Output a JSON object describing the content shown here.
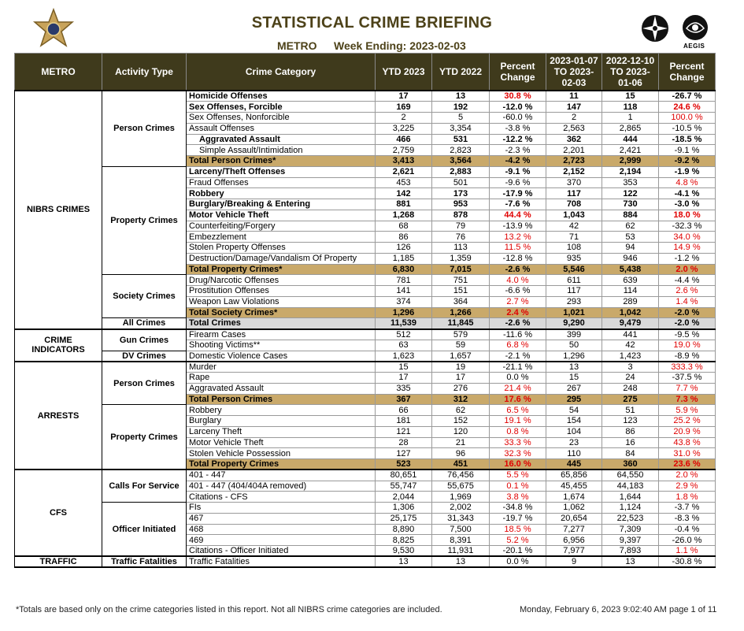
{
  "header": {
    "title": "STATISTICAL CRIME BRIEFING",
    "area": "METRO",
    "week": "Week Ending: 2023-02-03",
    "logo_text": "AEGIS"
  },
  "table": {
    "columns": [
      "METRO",
      "Activity Type",
      "Crime Category",
      "YTD  2023",
      "YTD  2022",
      "Percent Change",
      "2023-01-07 TO 2023-02-03",
      "2022-12-10 TO 2023-01-06",
      "Percent Change"
    ],
    "sections": [
      {
        "name": "NIBRS CRIMES",
        "groups": [
          {
            "name": "Person Crimes",
            "rows": [
              {
                "style": "bold",
                "cells": [
                  "Homicide Offenses",
                  "17",
                  "13",
                  "30.8 %",
                  "11",
                  "15",
                  "-26.7 %"
                ]
              },
              {
                "style": "bold",
                "cells": [
                  "Sex Offenses, Forcible",
                  "169",
                  "192",
                  "-12.0 %",
                  "147",
                  "118",
                  "24.6 %"
                ]
              },
              {
                "cells": [
                  "Sex Offenses, Nonforcible",
                  "2",
                  "5",
                  "-60.0 %",
                  "2",
                  "1",
                  "100.0 %"
                ]
              },
              {
                "cells": [
                  "Assault Offenses",
                  "3,225",
                  "3,354",
                  "-3.8 %",
                  "2,563",
                  "2,865",
                  "-10.5 %"
                ]
              },
              {
                "style": "bold-indent",
                "cells": [
                  "Aggravated Assault",
                  "466",
                  "531",
                  "-12.2 %",
                  "362",
                  "444",
                  "-18.5 %"
                ]
              },
              {
                "style": "indent",
                "cells": [
                  "Simple Assault/Intimidation",
                  "2,759",
                  "2,823",
                  "-2.3 %",
                  "2,201",
                  "2,421",
                  "-9.1 %"
                ]
              },
              {
                "style": "total",
                "cells": [
                  "Total Person Crimes*",
                  "3,413",
                  "3,564",
                  "-4.2 %",
                  "2,723",
                  "2,999",
                  "-9.2 %"
                ]
              }
            ]
          },
          {
            "name": "Property Crimes",
            "rows": [
              {
                "style": "bold",
                "cells": [
                  "Larceny/Theft Offenses",
                  "2,621",
                  "2,883",
                  "-9.1 %",
                  "2,152",
                  "2,194",
                  "-1.9 %"
                ]
              },
              {
                "cells": [
                  "Fraud Offenses",
                  "453",
                  "501",
                  "-9.6 %",
                  "370",
                  "353",
                  "4.8 %"
                ]
              },
              {
                "style": "bold",
                "cells": [
                  "Robbery",
                  "142",
                  "173",
                  "-17.9 %",
                  "117",
                  "122",
                  "-4.1 %"
                ]
              },
              {
                "style": "bold",
                "cells": [
                  "Burglary/Breaking & Entering",
                  "881",
                  "953",
                  "-7.6 %",
                  "708",
                  "730",
                  "-3.0 %"
                ]
              },
              {
                "style": "bold",
                "cells": [
                  "Motor Vehicle Theft",
                  "1,268",
                  "878",
                  "44.4 %",
                  "1,043",
                  "884",
                  "18.0 %"
                ]
              },
              {
                "cells": [
                  "Counterfeiting/Forgery",
                  "68",
                  "79",
                  "-13.9 %",
                  "42",
                  "62",
                  "-32.3 %"
                ]
              },
              {
                "cells": [
                  "Embezzlement",
                  "86",
                  "76",
                  "13.2 %",
                  "71",
                  "53",
                  "34.0 %"
                ]
              },
              {
                "cells": [
                  "Stolen Property Offenses",
                  "126",
                  "113",
                  "11.5 %",
                  "108",
                  "94",
                  "14.9 %"
                ]
              },
              {
                "cells": [
                  "Destruction/Damage/Vandalism Of Property",
                  "1,185",
                  "1,359",
                  "-12.8 %",
                  "935",
                  "946",
                  "-1.2 %"
                ]
              },
              {
                "style": "total",
                "cells": [
                  "Total Property Crimes*",
                  "6,830",
                  "7,015",
                  "-2.6 %",
                  "5,546",
                  "5,438",
                  "2.0 %"
                ]
              }
            ]
          },
          {
            "name": "Society Crimes",
            "rows": [
              {
                "cells": [
                  "Drug/Narcotic Offenses",
                  "781",
                  "751",
                  "4.0 %",
                  "611",
                  "639",
                  "-4.4 %"
                ]
              },
              {
                "cells": [
                  "Prostitution Offenses",
                  "141",
                  "151",
                  "-6.6 %",
                  "117",
                  "114",
                  "2.6 %"
                ]
              },
              {
                "cells": [
                  "Weapon Law Violations",
                  "374",
                  "364",
                  "2.7 %",
                  "293",
                  "289",
                  "1.4 %"
                ]
              },
              {
                "style": "total",
                "cells": [
                  "Total Society Crimes*",
                  "1,296",
                  "1,266",
                  "2.4 %",
                  "1,021",
                  "1,042",
                  "-2.0 %"
                ]
              }
            ]
          },
          {
            "name": "All Crimes",
            "rows": [
              {
                "style": "allcrimes",
                "cells": [
                  "Total Crimes",
                  "11,539",
                  "11,845",
                  "-2.6 %",
                  "9,290",
                  "9,479",
                  "-2.0 %"
                ]
              }
            ]
          }
        ]
      },
      {
        "name": "CRIME INDICATORS",
        "groups": [
          {
            "name": "Gun Crimes",
            "rows": [
              {
                "cells": [
                  "Firearm Cases",
                  "512",
                  "579",
                  "-11.6 %",
                  "399",
                  "441",
                  "-9.5 %"
                ]
              },
              {
                "cells": [
                  "Shooting Victims**",
                  "63",
                  "59",
                  "6.8 %",
                  "50",
                  "42",
                  "19.0 %"
                ]
              }
            ]
          },
          {
            "name": "DV Crimes",
            "rows": [
              {
                "cells": [
                  "Domestic Violence Cases",
                  "1,623",
                  "1,657",
                  "-2.1 %",
                  "1,296",
                  "1,423",
                  "-8.9 %"
                ]
              }
            ]
          }
        ]
      },
      {
        "name": "ARRESTS",
        "groups": [
          {
            "name": "Person Crimes",
            "rows": [
              {
                "cells": [
                  "Murder",
                  "15",
                  "19",
                  "-21.1 %",
                  "13",
                  "3",
                  "333.3 %"
                ]
              },
              {
                "cells": [
                  "Rape",
                  "17",
                  "17",
                  "0.0 %",
                  "15",
                  "24",
                  "-37.5 %"
                ]
              },
              {
                "cells": [
                  "Aggravated Assault",
                  "335",
                  "276",
                  "21.4 %",
                  "267",
                  "248",
                  "7.7 %"
                ]
              },
              {
                "style": "total",
                "cells": [
                  "Total Person Crimes",
                  "367",
                  "312",
                  "17.6 %",
                  "295",
                  "275",
                  "7.3 %"
                ]
              }
            ]
          },
          {
            "name": "Property Crimes",
            "rows": [
              {
                "cells": [
                  "Robbery",
                  "66",
                  "62",
                  "6.5 %",
                  "54",
                  "51",
                  "5.9 %"
                ]
              },
              {
                "cells": [
                  "Burglary",
                  "181",
                  "152",
                  "19.1 %",
                  "154",
                  "123",
                  "25.2 %"
                ]
              },
              {
                "cells": [
                  "Larceny Theft",
                  "121",
                  "120",
                  "0.8 %",
                  "104",
                  "86",
                  "20.9 %"
                ]
              },
              {
                "cells": [
                  "Motor Vehicle Theft",
                  "28",
                  "21",
                  "33.3 %",
                  "23",
                  "16",
                  "43.8 %"
                ]
              },
              {
                "cells": [
                  "Stolen Vehicle Possession",
                  "127",
                  "96",
                  "32.3 %",
                  "110",
                  "84",
                  "31.0 %"
                ]
              },
              {
                "style": "total",
                "cells": [
                  "Total Property Crimes",
                  "523",
                  "451",
                  "16.0 %",
                  "445",
                  "360",
                  "23.6 %"
                ]
              }
            ]
          }
        ]
      },
      {
        "name": "CFS",
        "groups": [
          {
            "name": "Calls For Service",
            "rows": [
              {
                "cells": [
                  "401 - 447",
                  "80,651",
                  "76,456",
                  "5.5 %",
                  "65,856",
                  "64,550",
                  "2.0 %"
                ]
              },
              {
                "cells": [
                  "401 - 447 (404/404A removed)",
                  "55,747",
                  "55,675",
                  "0.1 %",
                  "45,455",
                  "44,183",
                  "2.9 %"
                ]
              },
              {
                "cells": [
                  "Citations - CFS",
                  "2,044",
                  "1,969",
                  "3.8 %",
                  "1,674",
                  "1,644",
                  "1.8 %"
                ]
              }
            ]
          },
          {
            "name": "Officer Initiated",
            "rows": [
              {
                "cells": [
                  "FIs",
                  "1,306",
                  "2,002",
                  "-34.8 %",
                  "1,062",
                  "1,124",
                  "-3.7 %"
                ]
              },
              {
                "cells": [
                  "467",
                  "25,175",
                  "31,343",
                  "-19.7 %",
                  "20,654",
                  "22,523",
                  "-8.3 %"
                ]
              },
              {
                "cells": [
                  "468",
                  "8,890",
                  "7,500",
                  "18.5 %",
                  "7,277",
                  "7,309",
                  "-0.4 %"
                ]
              },
              {
                "cells": [
                  "469",
                  "8,825",
                  "8,391",
                  "5.2 %",
                  "6,956",
                  "9,397",
                  "-26.0 %"
                ]
              },
              {
                "cells": [
                  "Citations - Officer Initiated",
                  "9,530",
                  "11,931",
                  "-20.1 %",
                  "7,977",
                  "7,893",
                  "1.1 %"
                ]
              }
            ]
          }
        ]
      },
      {
        "name": "TRAFFIC",
        "groups": [
          {
            "name": "Traffic Fatalities",
            "rows": [
              {
                "cells": [
                  "Traffic Fatalities",
                  "13",
                  "13",
                  "0.0 %",
                  "9",
                  "13",
                  "-30.8 %"
                ]
              }
            ]
          }
        ]
      }
    ]
  },
  "footer": {
    "note": "*Totals are based only on the crime categories listed in this report. Not all NIBRS crime categories are included.",
    "timestamp": "Monday, February 6, 2023  9:02:40 AM  page 1 of 11"
  }
}
